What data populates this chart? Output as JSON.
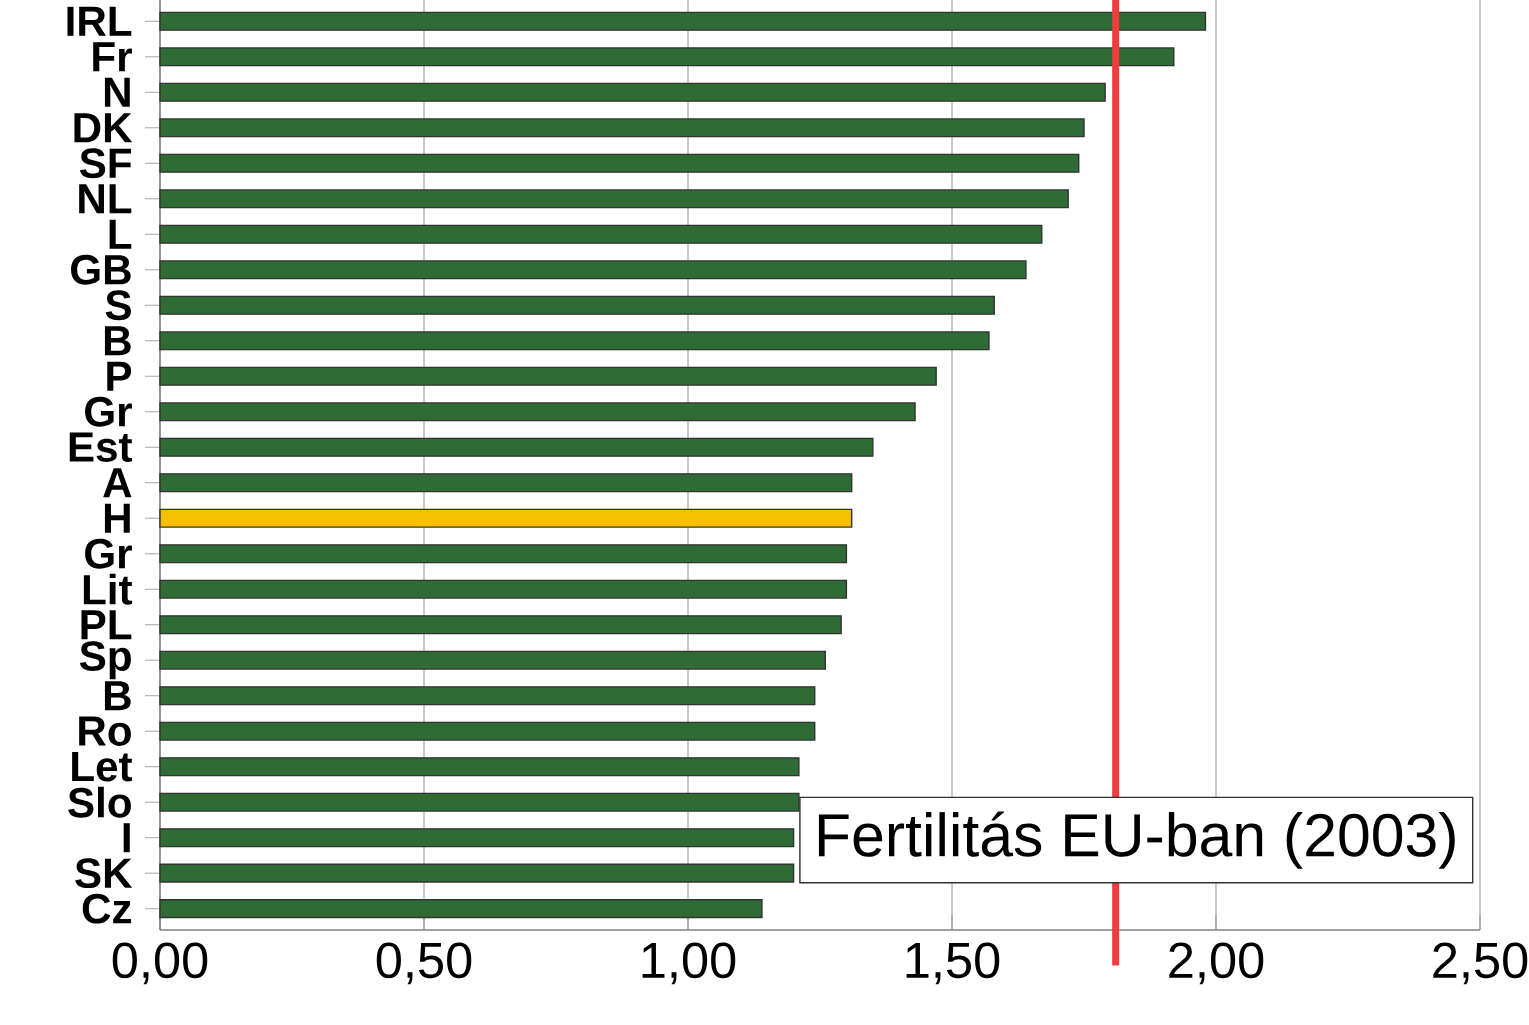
{
  "chart_data": {
    "type": "bar",
    "orientation": "horizontal",
    "title": "Fertilitás EU-ban (2003)",
    "categories": [
      "IRL",
      "Fr",
      "N",
      "DK",
      "SF",
      "NL",
      "L",
      "GB",
      "S",
      "B",
      "P",
      "Gr",
      "Est",
      "A",
      "H",
      "Gr",
      "Lit",
      "PL",
      "Sp",
      "B",
      "Ro",
      "Let",
      "Slo",
      "I",
      "SK",
      "Cz"
    ],
    "values": [
      1.98,
      1.92,
      1.79,
      1.75,
      1.74,
      1.72,
      1.67,
      1.64,
      1.58,
      1.57,
      1.47,
      1.43,
      1.35,
      1.31,
      1.31,
      1.3,
      1.3,
      1.29,
      1.26,
      1.24,
      1.24,
      1.21,
      1.21,
      1.2,
      1.2,
      1.14
    ],
    "colors": [
      "#2e6b35",
      "#2e6b35",
      "#2e6b35",
      "#2e6b35",
      "#2e6b35",
      "#2e6b35",
      "#2e6b35",
      "#2e6b35",
      "#2e6b35",
      "#2e6b35",
      "#2e6b35",
      "#2e6b35",
      "#2e6b35",
      "#2e6b35",
      "#f5c000",
      "#2e6b35",
      "#2e6b35",
      "#2e6b35",
      "#2e6b35",
      "#2e6b35",
      "#2e6b35",
      "#2e6b35",
      "#2e6b35",
      "#2e6b35",
      "#2e6b35",
      "#2e6b35"
    ],
    "xlim": [
      0,
      2.5
    ],
    "xticks": [
      {
        "value": 0,
        "label": "0,00"
      },
      {
        "value": 0.5,
        "label": "0,50"
      },
      {
        "value": 1,
        "label": "1,00"
      },
      {
        "value": 1.5,
        "label": "1,50"
      },
      {
        "value": 2,
        "label": "2,00"
      },
      {
        "value": 2.5,
        "label": "2,50"
      }
    ],
    "grid": "x",
    "ref_lines": [
      {
        "axis": "x",
        "value": 1.81,
        "color": "#f03c3c"
      }
    ]
  }
}
